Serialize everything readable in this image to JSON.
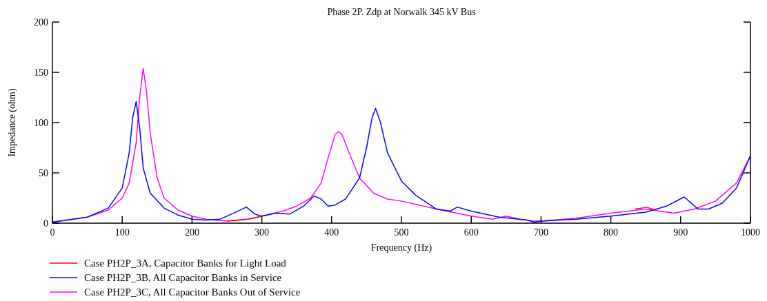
{
  "chart_data": {
    "type": "line",
    "title": "Phase 2P.  Zdp at Norwalk 345 kV Bus",
    "xlabel": "Frequency (Hz)",
    "ylabel": "Impedance (ohm)",
    "xlim": [
      0,
      1000
    ],
    "ylim": [
      0,
      200
    ],
    "xticks": [
      0,
      100,
      200,
      300,
      400,
      500,
      600,
      700,
      800,
      900,
      1000
    ],
    "yticks": [
      0,
      50,
      100,
      150,
      200
    ],
    "grid": false,
    "legend": "bottom left",
    "line_style": "solid",
    "marker": "none",
    "series": [
      {
        "name": "Case PH2P_3A, Capacitor Banks for Light Load",
        "color": "#ff0000",
        "x": [
          250,
          265,
          280,
          295,
          300,
          null,
          835,
          845,
          850,
          855,
          865
        ],
        "values": [
          2,
          3,
          4,
          6,
          7,
          null,
          14,
          15,
          16,
          15,
          13
        ]
      },
      {
        "name": "Case PH2P_3B, All Capacitor Banks in Service",
        "color": "#0000ff",
        "x": [
          0,
          50,
          80,
          100,
          110,
          115,
          120,
          125,
          130,
          140,
          160,
          180,
          200,
          220,
          240,
          260,
          278,
          290,
          300,
          320,
          340,
          360,
          375,
          385,
          395,
          405,
          420,
          440,
          450,
          458,
          463,
          470,
          480,
          500,
          520,
          550,
          570,
          580,
          600,
          640,
          680,
          690,
          700,
          750,
          800,
          850,
          880,
          905,
          925,
          940,
          960,
          980,
          1000
        ],
        "values": [
          1,
          6,
          15,
          35,
          70,
          105,
          121,
          95,
          55,
          30,
          15,
          8,
          4,
          3,
          4,
          10,
          16,
          9,
          7,
          10,
          9,
          17,
          27,
          24,
          17,
          18,
          24,
          45,
          75,
          105,
          114,
          100,
          70,
          42,
          28,
          14,
          12,
          16,
          12,
          6,
          3,
          1,
          2,
          4,
          7,
          11,
          17,
          26,
          14,
          14,
          20,
          35,
          67
        ]
      },
      {
        "name": "Case PH2P_3C, All Capacitor Banks Out of Service",
        "color": "#ff00ff",
        "x": [
          0,
          50,
          80,
          100,
          110,
          120,
          125,
          130,
          135,
          140,
          150,
          160,
          180,
          200,
          220,
          250,
          280,
          300,
          330,
          350,
          370,
          385,
          395,
          405,
          410,
          415,
          425,
          440,
          460,
          480,
          500,
          550,
          600,
          630,
          650,
          670,
          690,
          700,
          750,
          800,
          850,
          870,
          890,
          920,
          950,
          980,
          1000
        ],
        "values": [
          1,
          6,
          13,
          25,
          40,
          80,
          125,
          154,
          130,
          90,
          45,
          25,
          13,
          7,
          4,
          2,
          4,
          7,
          12,
          17,
          25,
          40,
          65,
          88,
          91,
          88,
          70,
          45,
          30,
          24,
          22,
          14,
          7,
          4,
          7,
          4,
          2,
          2,
          5,
          10,
          14,
          12,
          10,
          14,
          22,
          40,
          67
        ]
      }
    ]
  }
}
